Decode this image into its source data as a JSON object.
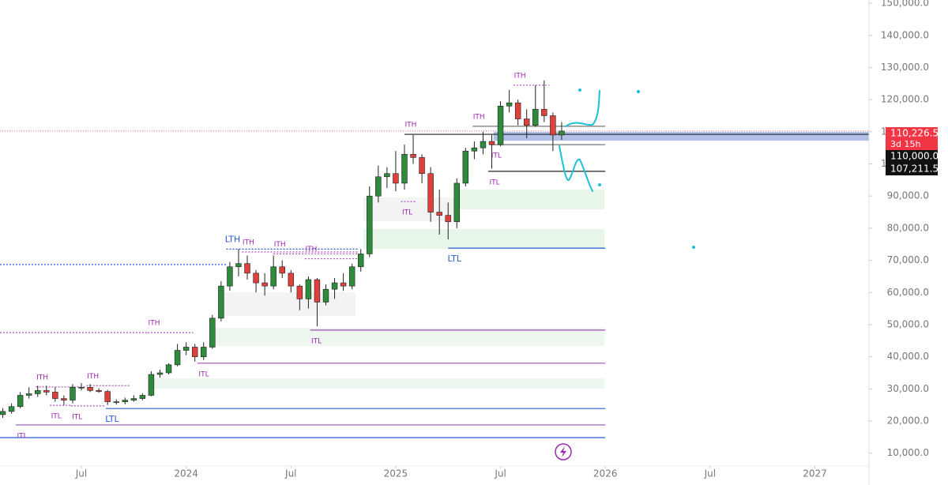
{
  "chart_data": {
    "type": "candlestick",
    "x": [
      1.5,
      2,
      2.5,
      3,
      3.5,
      4,
      4.5,
      5,
      5.5,
      6,
      6.5,
      7,
      7.5,
      8,
      8.5,
      9,
      9.5,
      10,
      10.5,
      11,
      11.5,
      12,
      12.5,
      13,
      13.5,
      14,
      14.5,
      15,
      15.5,
      16,
      16.5,
      17,
      17.5,
      18,
      18.5,
      19,
      19.5,
      20,
      20.5,
      21,
      21.5,
      22,
      22.5,
      23,
      23.5,
      24,
      24.5,
      25,
      25.5,
      26,
      26.5,
      27,
      27.5,
      28,
      28.5,
      29,
      29.5,
      30,
      30.5,
      31,
      31.5,
      32,
      32.5,
      33,
      33.5
    ],
    "open": [
      22000,
      23000,
      24500,
      28000,
      28500,
      29500,
      29000,
      27000,
      26500,
      30500,
      30500,
      29500,
      29200,
      26000,
      26000,
      26500,
      27000,
      28000,
      34500,
      35000,
      37500,
      42000,
      43000,
      40000,
      43000,
      52000,
      62000,
      68000,
      69000,
      66000,
      63000,
      62000,
      68000,
      66000,
      62000,
      58000,
      64000,
      57000,
      61000,
      63000,
      62000,
      68000,
      72000,
      90000,
      96000,
      97000,
      94000,
      103000,
      102000,
      97000,
      85000,
      84000,
      82000,
      94000,
      104000,
      105000,
      107000,
      106000,
      118000,
      119000,
      114000,
      112000,
      117000,
      115000,
      109000
    ],
    "high": [
      24000,
      25500,
      29000,
      30500,
      31000,
      31000,
      30500,
      28000,
      31500,
      31800,
      31500,
      30200,
      29700,
      26800,
      27300,
      28000,
      28600,
      35500,
      36000,
      38000,
      44000,
      44500,
      44000,
      44500,
      53000,
      63500,
      69500,
      73500,
      71500,
      67000,
      66000,
      71500,
      70000,
      67000,
      62500,
      65000,
      64500,
      62500,
      64500,
      66000,
      69000,
      73500,
      93000,
      99500,
      99000,
      104000,
      106000,
      109000,
      103000,
      99000,
      92000,
      88000,
      95500,
      105000,
      107000,
      110000,
      109000,
      119500,
      123000,
      120000,
      117000,
      124500,
      126000,
      116000,
      113000
    ],
    "low": [
      21000,
      22300,
      24000,
      27000,
      27500,
      28000,
      26000,
      25000,
      25500,
      29500,
      29000,
      28800,
      25000,
      25100,
      25200,
      26000,
      26500,
      27700,
      33500,
      34500,
      37000,
      40500,
      38500,
      39000,
      42500,
      51000,
      60500,
      65000,
      64000,
      60000,
      59000,
      61000,
      64500,
      60000,
      54500,
      55000,
      49500,
      56000,
      58000,
      60500,
      61000,
      66500,
      71000,
      88000,
      92500,
      91500,
      92000,
      100000,
      94000,
      82000,
      78000,
      76500,
      80000,
      93000,
      101500,
      103000,
      98500,
      105500,
      116000,
      112000,
      108000,
      111500,
      113000,
      104000,
      107500
    ],
    "close": [
      23000,
      24500,
      28000,
      28500,
      29500,
      29000,
      27000,
      26500,
      30500,
      30500,
      29500,
      29200,
      26000,
      26000,
      26500,
      27000,
      28000,
      34500,
      35000,
      37500,
      42000,
      43000,
      40000,
      43000,
      52000,
      62000,
      68000,
      69000,
      66000,
      63000,
      62000,
      68000,
      66000,
      62000,
      58000,
      64000,
      57000,
      61000,
      63000,
      62000,
      68000,
      72000,
      90000,
      96000,
      97000,
      94000,
      103000,
      102000,
      97000,
      85000,
      84000,
      82000,
      94000,
      104000,
      105000,
      107000,
      106000,
      118000,
      119000,
      114000,
      112000,
      117000,
      115000,
      109000,
      110226.5
    ],
    "up_color": "#2e8b3e",
    "down_color": "#e0403c",
    "xlim": [
      1.34,
      51.1
    ],
    "xticks": [
      {
        "value": 6,
        "label": "Jul"
      },
      {
        "value": 12,
        "label": "2024"
      },
      {
        "value": 18,
        "label": "Jul"
      },
      {
        "value": 24,
        "label": "2025"
      },
      {
        "value": 30,
        "label": "Jul"
      },
      {
        "value": 36,
        "label": "2026"
      },
      {
        "value": 42,
        "label": "Jul"
      },
      {
        "value": 48,
        "label": "2027"
      }
    ],
    "ylim": [
      6000,
      151000
    ],
    "yticks": [
      {
        "value": 10000,
        "label": "10,000.0"
      },
      {
        "value": 20000,
        "label": "20,000.0"
      },
      {
        "value": 30000,
        "label": "30,000.0"
      },
      {
        "value": 40000,
        "label": "40,000.0"
      },
      {
        "value": 50000,
        "label": "50,000.0"
      },
      {
        "value": 60000,
        "label": "60,000.0"
      },
      {
        "value": 70000,
        "label": "70,000.0"
      },
      {
        "value": 80000,
        "label": "80,000.0"
      },
      {
        "value": 90000,
        "label": "90,000.0"
      },
      {
        "value": 100000,
        "label": "100,000.0"
      },
      {
        "value": 110000,
        "label": "110,000.0"
      },
      {
        "value": 120000,
        "label": "120,000.0"
      },
      {
        "value": 130000,
        "label": "130,000.0"
      },
      {
        "value": 140000,
        "label": "140,000.0"
      },
      {
        "value": 150000,
        "label": "150,000.0"
      }
    ],
    "levels": [
      {
        "label": "ITH",
        "value": 124500,
        "x": [
          30.75,
          32.8
        ],
        "color": "#b04fc0",
        "style": "dotted"
      },
      {
        "label": "ITH",
        "value": 109200,
        "x": [
          24.5,
          51.1
        ],
        "color": "#222222",
        "style": "solid"
      },
      {
        "label": "ITH",
        "value": 111700,
        "x": [
          28.4,
          36
        ],
        "color": "#777777",
        "style": "solid"
      },
      {
        "label": "ITL",
        "value": 106000,
        "x": [
          29.4,
          36
        ],
        "color": "#777777",
        "style": "solid"
      },
      {
        "label": "ITL",
        "value": 97700,
        "x": [
          29.3,
          36
        ],
        "color": "#222222",
        "style": "solid"
      },
      {
        "label": "ITL",
        "value": 88300,
        "x": [
          24.3,
          25.2
        ],
        "color": "#b04fc0",
        "style": "dotted"
      },
      {
        "label": "LTL",
        "value": 73800,
        "x": [
          27,
          36
        ],
        "color": "#2a5bd7",
        "style": "solid"
      },
      {
        "label": "LTH",
        "value": 73500,
        "x": [
          14.3,
          21.9
        ],
        "color": "#2a5bd7",
        "style": "dotted"
      },
      {
        "label": "ITH",
        "value": 72600,
        "x": [
          15.2,
          21.9
        ],
        "color": "#b04fc0",
        "style": "dotted"
      },
      {
        "label": "ITH",
        "value": 72000,
        "x": [
          17,
          21.9
        ],
        "color": "#b04fc0",
        "style": "dotted"
      },
      {
        "label": "ITH",
        "value": 70500,
        "x": [
          18.8,
          21.9
        ],
        "color": "#b04fc0",
        "style": "dotted"
      },
      {
        "label": "ITL",
        "value": 48300,
        "x": [
          19.1,
          36
        ],
        "color": "#9c4fb0",
        "style": "solid"
      },
      {
        "label": "ITH",
        "value": 47500,
        "x": [
          9.8,
          12.4
        ],
        "color": "#b04fc0",
        "style": "dotted"
      },
      {
        "label": "ITL",
        "value": 38000,
        "x": [
          12.65,
          36
        ],
        "color": "#9c4fb0",
        "style": "solid"
      },
      {
        "label": "ITH",
        "value": 30600,
        "x": [
          3.4,
          6.3
        ],
        "color": "#b04fc0",
        "style": "dotted"
      },
      {
        "label": "ITH",
        "value": 31000,
        "x": [
          6.3,
          8.8
        ],
        "color": "#b04fc0",
        "style": "dotted"
      },
      {
        "label": "ITL",
        "value": 24900,
        "x": [
          4.2,
          5.4
        ],
        "color": "#b04fc0",
        "style": "dotted"
      },
      {
        "label": "ITL",
        "value": 24700,
        "x": [
          5.4,
          7.4
        ],
        "color": "#b04fc0",
        "style": "dotted"
      },
      {
        "label": "LTL",
        "value": 23900,
        "x": [
          7.4,
          36
        ],
        "color": "#2a5bd7",
        "style": "solid"
      },
      {
        "label": "ITL",
        "value": 18800,
        "x": [
          2.25,
          36
        ],
        "color": "#9c4fb0",
        "style": "solid"
      }
    ],
    "lines": [
      {
        "value": 14850,
        "x": [
          1.34,
          36
        ],
        "color": "#2a5bd7",
        "style": "solid"
      },
      {
        "value": 68700,
        "x": [
          1.34,
          14.3
        ],
        "color": "#2a5bd7",
        "style": "dotted"
      },
      {
        "value": 47500,
        "x": [
          1.34,
          9.8
        ],
        "color": "#b04fc0",
        "style": "dotted"
      }
    ],
    "band_start": 29.6,
    "price_labels": [
      {
        "value": 110226.5,
        "label": "110,226.5",
        "sub": "3d 15h",
        "color": "#f23645"
      },
      {
        "value": 110000,
        "label": "110,000.0",
        "color": "#111111"
      },
      {
        "value": 107211.5,
        "label": "107,211.5",
        "color": "#111111"
      }
    ]
  }
}
